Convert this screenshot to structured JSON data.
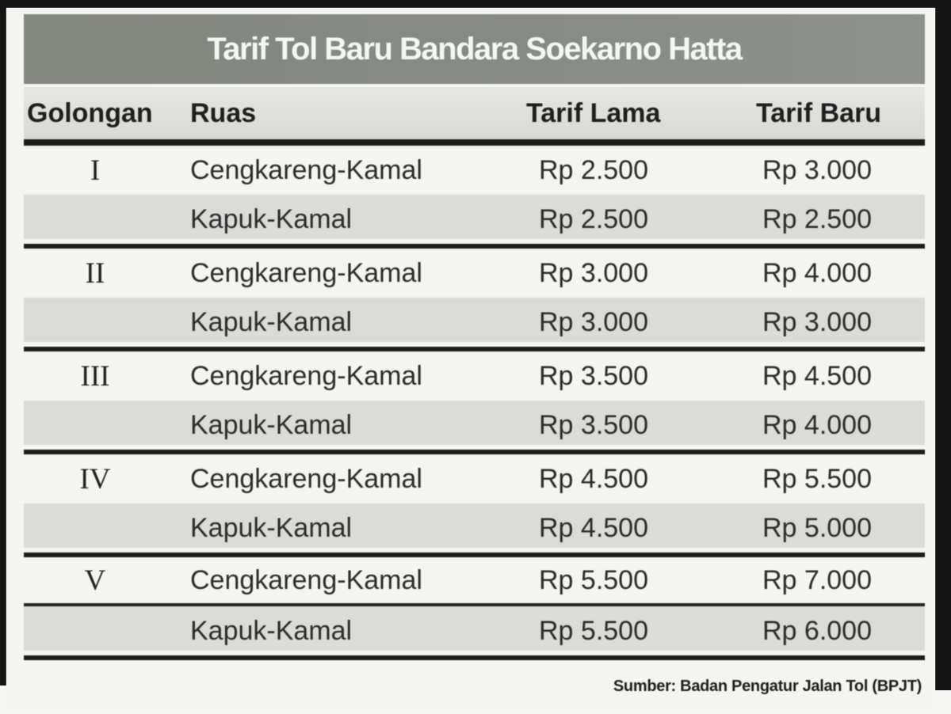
{
  "title": "Tarif Tol Baru Bandara Soekarno Hatta",
  "source": "Sumber: Badan Pengatur Jalan Tol (BPJT)",
  "table": {
    "headers": [
      "Golongan",
      "Ruas",
      "Tarif Lama",
      "Tarif Baru"
    ],
    "groups": [
      {
        "golongan": "I",
        "rows": [
          [
            "Cengkareng-Kamal",
            "Rp 2.500",
            "Rp 3.000"
          ],
          [
            "Kapuk-Kamal",
            "Rp 2.500",
            "Rp 2.500"
          ]
        ]
      },
      {
        "golongan": "II",
        "rows": [
          [
            "Cengkareng-Kamal",
            "Rp 3.000",
            "Rp 4.000"
          ],
          [
            "Kapuk-Kamal",
            "Rp 3.000",
            "Rp 3.000"
          ]
        ]
      },
      {
        "golongan": "III",
        "rows": [
          [
            "Cengkareng-Kamal",
            "Rp 3.500",
            "Rp 4.500"
          ],
          [
            "Kapuk-Kamal",
            "Rp 3.500",
            "Rp 4.000"
          ]
        ]
      },
      {
        "golongan": "IV",
        "rows": [
          [
            "Cengkareng-Kamal",
            "Rp 4.500",
            "Rp 5.500"
          ],
          [
            "Kapuk-Kamal",
            "Rp 4.500",
            "Rp 5.000"
          ]
        ]
      },
      {
        "golongan": "V",
        "rows": [
          [
            "Cengkareng-Kamal",
            "Rp 5.500",
            "Rp 7.000"
          ],
          [
            "Kapuk-Kamal",
            "Rp 5.500",
            "Rp 6.000"
          ]
        ]
      }
    ]
  },
  "colors": {
    "title_bar": "#878a86",
    "title_text": "#f4f8f2",
    "header_bg": "#dedddb",
    "row_shade": "#dbdbd8",
    "rule": "#1b1b1b",
    "photo_edge": "#151515",
    "body_text": "#2b2b2b"
  }
}
